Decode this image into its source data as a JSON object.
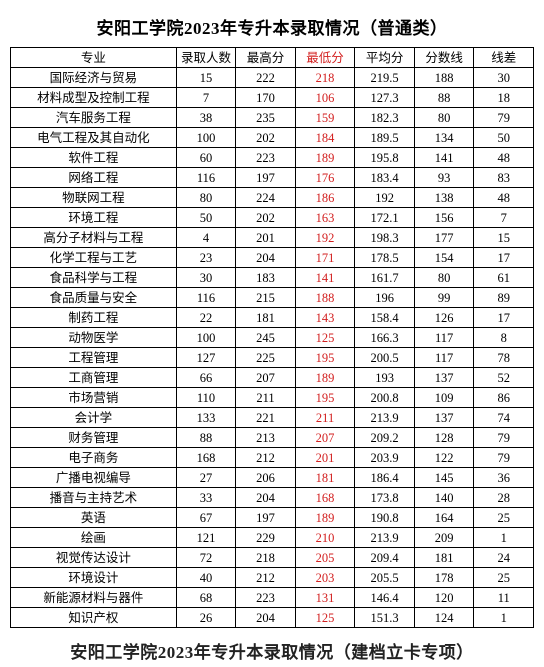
{
  "title": "安阳工学院2023年专升本录取情况（普通类）",
  "columns": [
    "专业",
    "录取人数",
    "最高分",
    "最低分",
    "平均分",
    "分数线",
    "线差"
  ],
  "rows": [
    [
      "国际经济与贸易",
      "15",
      "222",
      "218",
      "219.5",
      "188",
      "30"
    ],
    [
      "材料成型及控制工程",
      "7",
      "170",
      "106",
      "127.3",
      "88",
      "18"
    ],
    [
      "汽车服务工程",
      "38",
      "235",
      "159",
      "182.3",
      "80",
      "79"
    ],
    [
      "电气工程及其自动化",
      "100",
      "202",
      "184",
      "189.5",
      "134",
      "50"
    ],
    [
      "软件工程",
      "60",
      "223",
      "189",
      "195.8",
      "141",
      "48"
    ],
    [
      "网络工程",
      "116",
      "197",
      "176",
      "183.4",
      "93",
      "83"
    ],
    [
      "物联网工程",
      "80",
      "224",
      "186",
      "192",
      "138",
      "48"
    ],
    [
      "环境工程",
      "50",
      "202",
      "163",
      "172.1",
      "156",
      "7"
    ],
    [
      "高分子材料与工程",
      "4",
      "201",
      "192",
      "198.3",
      "177",
      "15"
    ],
    [
      "化学工程与工艺",
      "23",
      "204",
      "171",
      "178.5",
      "154",
      "17"
    ],
    [
      "食品科学与工程",
      "30",
      "183",
      "141",
      "161.7",
      "80",
      "61"
    ],
    [
      "食品质量与安全",
      "116",
      "215",
      "188",
      "196",
      "99",
      "89"
    ],
    [
      "制药工程",
      "22",
      "181",
      "143",
      "158.4",
      "126",
      "17"
    ],
    [
      "动物医学",
      "100",
      "245",
      "125",
      "166.3",
      "117",
      "8"
    ],
    [
      "工程管理",
      "127",
      "225",
      "195",
      "200.5",
      "117",
      "78"
    ],
    [
      "工商管理",
      "66",
      "207",
      "189",
      "193",
      "137",
      "52"
    ],
    [
      "市场营销",
      "110",
      "211",
      "195",
      "200.8",
      "109",
      "86"
    ],
    [
      "会计学",
      "133",
      "221",
      "211",
      "213.9",
      "137",
      "74"
    ],
    [
      "财务管理",
      "88",
      "213",
      "207",
      "209.2",
      "128",
      "79"
    ],
    [
      "电子商务",
      "168",
      "212",
      "201",
      "203.9",
      "122",
      "79"
    ],
    [
      "广播电视编导",
      "27",
      "206",
      "181",
      "186.4",
      "145",
      "36"
    ],
    [
      "播音与主持艺术",
      "33",
      "204",
      "168",
      "173.8",
      "140",
      "28"
    ],
    [
      "英语",
      "67",
      "197",
      "189",
      "190.8",
      "164",
      "25"
    ],
    [
      "绘画",
      "121",
      "229",
      "210",
      "213.9",
      "209",
      "1"
    ],
    [
      "视觉传达设计",
      "72",
      "218",
      "205",
      "209.4",
      "181",
      "24"
    ],
    [
      "环境设计",
      "40",
      "212",
      "203",
      "205.5",
      "178",
      "25"
    ],
    [
      "新能源材料与器件",
      "68",
      "223",
      "131",
      "146.4",
      "120",
      "11"
    ],
    [
      "知识产权",
      "26",
      "204",
      "125",
      "151.3",
      "124",
      "1"
    ]
  ],
  "min_col_index": 3,
  "footer_partial": "安阳工学院2023年专升本录取情况（建档立卡专项）",
  "colors": {
    "min_color": "#d32020",
    "border": "#000000",
    "bg": "#ffffff"
  }
}
